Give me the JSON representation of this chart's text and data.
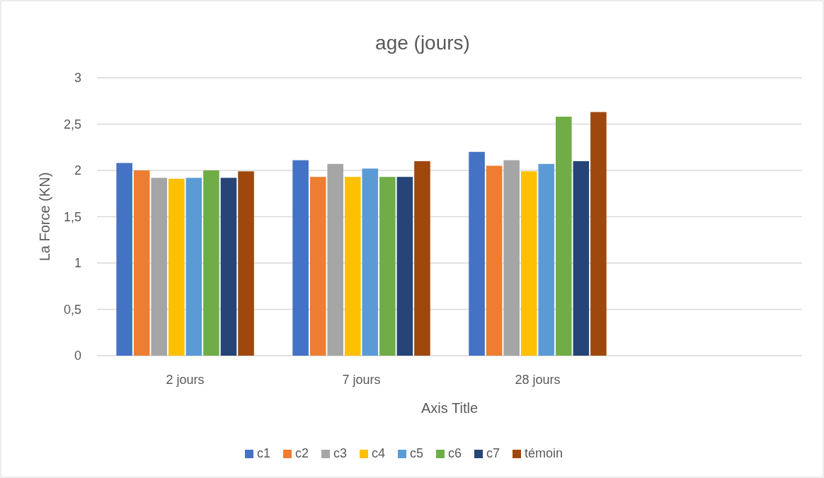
{
  "chart_data": {
    "type": "bar",
    "title": "age (jours)",
    "xlabel": "Axis Title",
    "ylabel": "La Force (KN)",
    "categories": [
      "2 jours",
      "7 jours",
      "28 jours",
      null
    ],
    "series": [
      {
        "name": "c1",
        "color": "#4472c4",
        "values": [
          2.08,
          2.11,
          2.2,
          null
        ]
      },
      {
        "name": "c2",
        "color": "#ed7d31",
        "values": [
          2.0,
          1.93,
          2.05,
          null
        ]
      },
      {
        "name": "c3",
        "color": "#a5a5a5",
        "values": [
          1.92,
          2.07,
          2.11,
          null
        ]
      },
      {
        "name": "c4",
        "color": "#ffc000",
        "values": [
          1.91,
          1.93,
          1.99,
          null
        ]
      },
      {
        "name": "c5",
        "color": "#5b9bd5",
        "values": [
          1.92,
          2.02,
          2.07,
          null
        ]
      },
      {
        "name": "c6",
        "color": "#70ad47",
        "values": [
          2.0,
          1.93,
          2.58,
          null
        ]
      },
      {
        "name": "c7",
        "color": "#264478",
        "values": [
          1.92,
          1.93,
          2.1,
          null
        ]
      },
      {
        "name": "témoin",
        "color": "#9e480e",
        "values": [
          1.99,
          2.1,
          2.63,
          null
        ]
      }
    ],
    "ylim": [
      0,
      3
    ],
    "yticks": [
      0,
      {
        "value": 0.5,
        "label": "0,5"
      },
      1,
      {
        "value": 1.5,
        "label": "1,5"
      },
      2,
      {
        "value": 2.5,
        "label": "2,5"
      },
      3
    ],
    "grid": "y",
    "legend": "bottom"
  }
}
